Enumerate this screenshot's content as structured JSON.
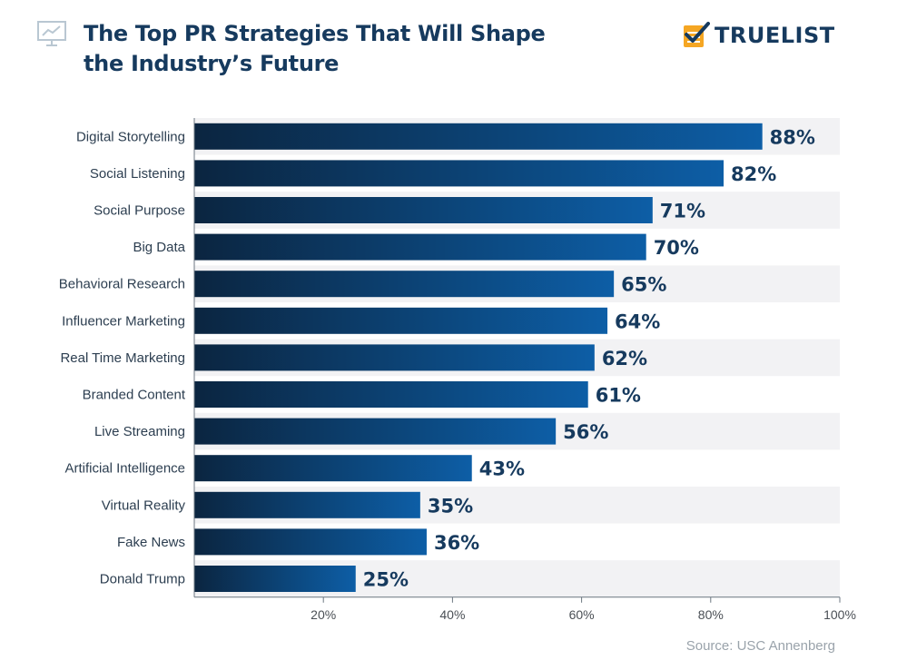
{
  "header": {
    "title_line1": "The Top PR Strategies That Will Shape",
    "title_line2": "the Industry’s Future",
    "icon": "presentation-chart-icon"
  },
  "logo": {
    "text": "TRUELIST",
    "icon": "check-note-icon",
    "accent": "#f5a623"
  },
  "source": "Source: USC Annenberg",
  "colors": {
    "bar_light": "#0d5ea6",
    "bar_dark": "#0b2540",
    "label": "#163a5e",
    "band": "#f2f2f4"
  },
  "chart_data": {
    "type": "bar",
    "orientation": "horizontal",
    "categories": [
      "Digital Storytelling",
      "Social Listening",
      "Social Purpose",
      "Big Data",
      "Behavioral Research",
      "Influencer Marketing",
      "Real Time Marketing",
      "Branded Content",
      "Live Streaming",
      "Artificial Intelligence",
      "Virtual Reality",
      "Fake News",
      "Donald Trump"
    ],
    "values": [
      88,
      82,
      71,
      70,
      65,
      64,
      62,
      61,
      56,
      43,
      35,
      36,
      25
    ],
    "value_labels": [
      "88%",
      "82%",
      "71%",
      "70%",
      "65%",
      "64%",
      "62%",
      "61%",
      "56%",
      "43%",
      "35%",
      "36%",
      "25%"
    ],
    "x_ticks": [
      "20%",
      "40%",
      "60%",
      "80%",
      "100%"
    ],
    "xlim": [
      0,
      100
    ],
    "grid": false
  }
}
